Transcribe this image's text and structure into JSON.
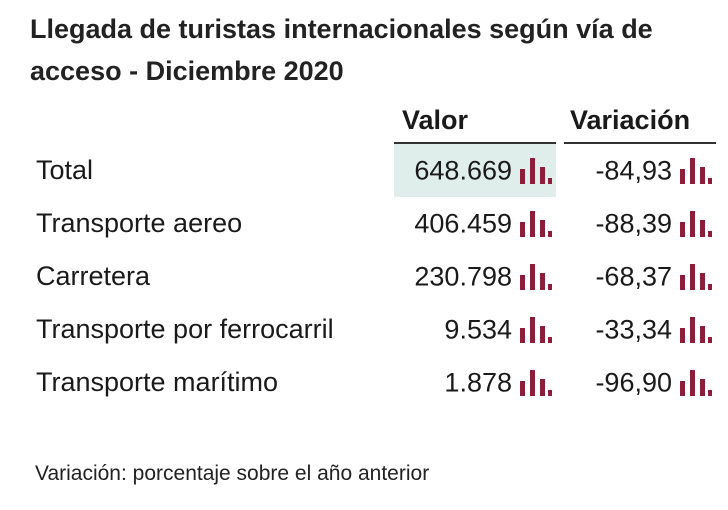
{
  "title": "Llegada de turistas internacionales según vía de acceso - Diciembre 2020",
  "columns": {
    "valor": "Valor",
    "variacion": "Variación"
  },
  "rows": [
    {
      "label": "Total",
      "valor": "648.669",
      "variacion": "-84,93"
    },
    {
      "label": "Transporte aereo",
      "valor": "406.459",
      "variacion": "-88,39"
    },
    {
      "label": "Carretera",
      "valor": "230.798",
      "variacion": "-68,37"
    },
    {
      "label": "Transporte por ferrocarril",
      "valor": "9.534",
      "variacion": "-33,34"
    },
    {
      "label": "Transporte marítimo",
      "valor": "1.878",
      "variacion": "-96,90"
    }
  ],
  "footnote": "Variación: porcentaje sobre el año anterior",
  "icons": {
    "chart": "bar-chart-icon"
  },
  "colors": {
    "icon": "#8c1d3b",
    "highlight": "#dfeeea"
  }
}
